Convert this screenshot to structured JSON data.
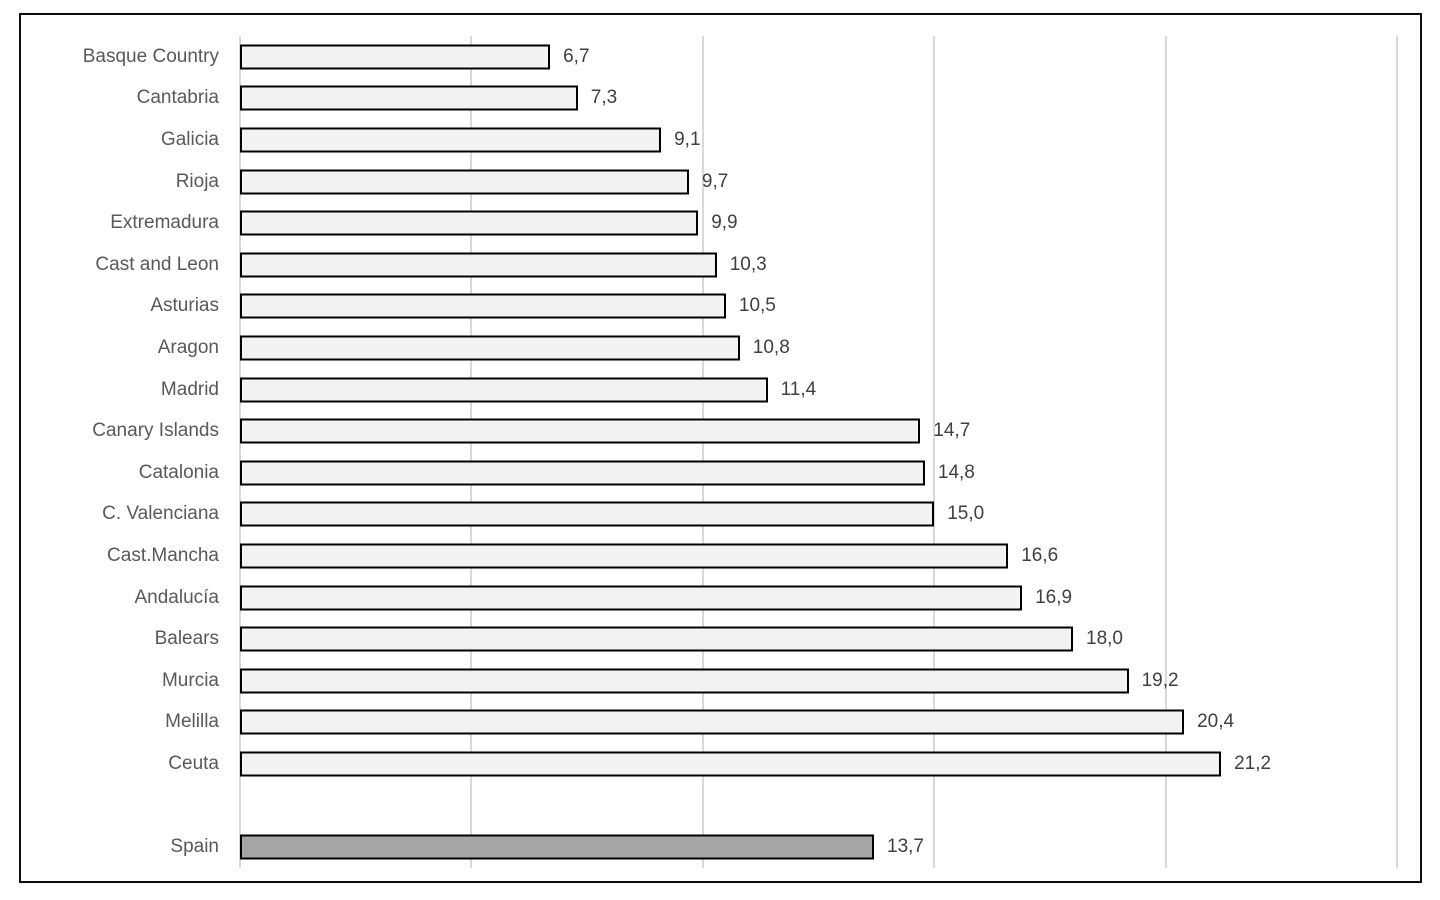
{
  "chart_data": {
    "type": "bar",
    "orientation": "horizontal",
    "title": "",
    "xlabel": "",
    "ylabel": "",
    "xlim": [
      0,
      25
    ],
    "gridline_values": [
      0,
      5,
      10,
      15,
      20,
      25
    ],
    "grid": true,
    "legend": false,
    "value_label_decimal_separator": ",",
    "items": [
      {
        "label": "Basque Country",
        "value": 6.7,
        "value_label": "6,7"
      },
      {
        "label": "Cantabria",
        "value": 7.3,
        "value_label": "7,3"
      },
      {
        "label": "Galicia",
        "value": 9.1,
        "value_label": "9,1"
      },
      {
        "label": "Rioja",
        "value": 9.7,
        "value_label": "9,7"
      },
      {
        "label": "Extremadura",
        "value": 9.9,
        "value_label": "9,9"
      },
      {
        "label": "Cast and Leon",
        "value": 10.3,
        "value_label": "10,3"
      },
      {
        "label": "Asturias",
        "value": 10.5,
        "value_label": "10,5"
      },
      {
        "label": "Aragon",
        "value": 10.8,
        "value_label": "10,8"
      },
      {
        "label": "Madrid",
        "value": 11.4,
        "value_label": "11,4"
      },
      {
        "label": "Canary Islands",
        "value": 14.7,
        "value_label": "14,7"
      },
      {
        "label": "Catalonia",
        "value": 14.8,
        "value_label": "14,8"
      },
      {
        "label": "C. Valenciana",
        "value": 15.0,
        "value_label": "15,0"
      },
      {
        "label": "Cast.Mancha",
        "value": 16.6,
        "value_label": "16,6"
      },
      {
        "label": "Andalucía",
        "value": 16.9,
        "value_label": "16,9"
      },
      {
        "label": "Balears",
        "value": 18.0,
        "value_label": "18,0"
      },
      {
        "label": "Murcia",
        "value": 19.2,
        "value_label": "19,2"
      },
      {
        "label": "Melilla",
        "value": 20.4,
        "value_label": "20,4"
      },
      {
        "label": "Ceuta",
        "value": 21.2,
        "value_label": "21,2"
      },
      {
        "label": "Spain",
        "value": 13.7,
        "value_label": "13,7",
        "is_total": true,
        "gap_before": true
      }
    ],
    "colors": {
      "bar_fill": "#f2f2f2",
      "bar_border": "#000000",
      "total_bar_fill": "#a6a6a6",
      "gridline": "#d9d9d9",
      "category_label": "#595959",
      "value_label": "#404040",
      "frame_border": "#0d0d0d",
      "background": "#ffffff"
    }
  }
}
